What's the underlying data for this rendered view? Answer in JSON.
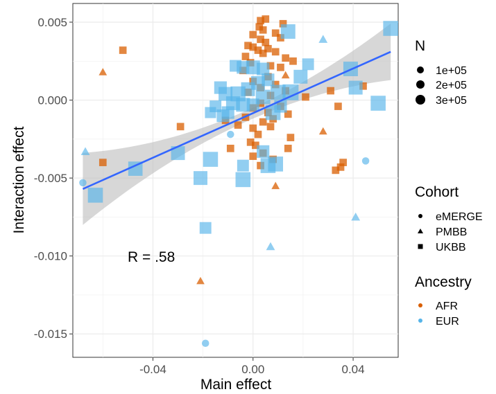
{
  "chart_data": {
    "type": "scatter",
    "xlabel": "Main effect",
    "ylabel": "Interaction effect",
    "xlim": [
      -0.072,
      0.058
    ],
    "ylim": [
      -0.0165,
      0.0062
    ],
    "x_ticks": [
      -0.04,
      0.0,
      0.04
    ],
    "x_tick_labels": [
      "-0.04",
      "0.00",
      "0.04"
    ],
    "y_ticks": [
      0.005,
      0.0,
      -0.005,
      -0.01,
      -0.015
    ],
    "y_tick_labels": [
      "0.005",
      "0.000",
      "-0.005",
      "-0.010",
      "-0.015"
    ],
    "grid": true,
    "annotation": "R = .58",
    "colors": {
      "AFR": "#d95f02",
      "EUR": "#56b4e9",
      "fit_line": "#3366ff",
      "ribbon": "#bdbdbd"
    },
    "fit_line": {
      "x": [
        -0.068,
        0.055
      ],
      "y": [
        -0.0057,
        0.0031
      ]
    },
    "legends": {
      "size": {
        "title": "N",
        "labels": [
          "1e+05",
          "2e+05",
          "3e+05"
        ],
        "values": [
          100000,
          200000,
          300000
        ]
      },
      "shape": {
        "title": "Cohort",
        "labels": [
          "eMERGE",
          "PMBB",
          "UKBB"
        ]
      },
      "color": {
        "title": "Ancestry",
        "labels": [
          "AFR",
          "EUR"
        ]
      }
    },
    "legend_position": "right",
    "points": [
      {
        "x": 0.005,
        "y": 0.0052,
        "cohort": "UKBB",
        "ancestry": "AFR",
        "n": 20000
      },
      {
        "x": 0.003,
        "y": 0.0051,
        "cohort": "UKBB",
        "ancestry": "AFR",
        "n": 20000
      },
      {
        "x": 0.012,
        "y": 0.0049,
        "cohort": "UKBB",
        "ancestry": "AFR",
        "n": 20000
      },
      {
        "x": 0.0025,
        "y": 0.0047,
        "cohort": "UKBB",
        "ancestry": "AFR",
        "n": 20000
      },
      {
        "x": 0.004,
        "y": 0.0045,
        "cohort": "UKBB",
        "ancestry": "AFR",
        "n": 20000
      },
      {
        "x": 0.009,
        "y": 0.0043,
        "cohort": "UKBB",
        "ancestry": "AFR",
        "n": 20000
      },
      {
        "x": 0.011,
        "y": 0.004,
        "cohort": "UKBB",
        "ancestry": "AFR",
        "n": 20000
      },
      {
        "x": 0.003,
        "y": 0.0039,
        "cohort": "UKBB",
        "ancestry": "AFR",
        "n": 20000
      },
      {
        "x": 0.005,
        "y": 0.0037,
        "cohort": "UKBB",
        "ancestry": "AFR",
        "n": 20000
      },
      {
        "x": -0.002,
        "y": 0.0035,
        "cohort": "UKBB",
        "ancestry": "AFR",
        "n": 20000
      },
      {
        "x": 0.0,
        "y": 0.0034,
        "cohort": "UKBB",
        "ancestry": "AFR",
        "n": 20000
      },
      {
        "x": 0.002,
        "y": 0.0032,
        "cohort": "UKBB",
        "ancestry": "AFR",
        "n": 20000
      },
      {
        "x": 0.006,
        "y": 0.0033,
        "cohort": "UKBB",
        "ancestry": "AFR",
        "n": 20000
      },
      {
        "x": 0.009,
        "y": 0.0031,
        "cohort": "UKBB",
        "ancestry": "AFR",
        "n": 20000
      },
      {
        "x": 0.004,
        "y": 0.003,
        "cohort": "UKBB",
        "ancestry": "AFR",
        "n": 20000
      },
      {
        "x": -0.003,
        "y": 0.0028,
        "cohort": "UKBB",
        "ancestry": "AFR",
        "n": 20000
      },
      {
        "x": 0.013,
        "y": 0.0027,
        "cohort": "UKBB",
        "ancestry": "AFR",
        "n": 20000
      },
      {
        "x": -0.001,
        "y": 0.0024,
        "cohort": "UKBB",
        "ancestry": "AFR",
        "n": 20000
      },
      {
        "x": 0.016,
        "y": 0.0025,
        "cohort": "UKBB",
        "ancestry": "AFR",
        "n": 20000
      },
      {
        "x": 0.007,
        "y": 0.0022,
        "cohort": "UKBB",
        "ancestry": "AFR",
        "n": 20000
      },
      {
        "x": 0.011,
        "y": 0.0021,
        "cohort": "UKBB",
        "ancestry": "AFR",
        "n": 20000
      },
      {
        "x": -0.004,
        "y": 0.0019,
        "cohort": "UKBB",
        "ancestry": "AFR",
        "n": 20000
      },
      {
        "x": 0.006,
        "y": 0.0015,
        "cohort": "UKBB",
        "ancestry": "AFR",
        "n": 20000
      },
      {
        "x": 0.0,
        "y": 0.0012,
        "cohort": "UKBB",
        "ancestry": "AFR",
        "n": 20000
      },
      {
        "x": 0.009,
        "y": 0.001,
        "cohort": "UKBB",
        "ancestry": "AFR",
        "n": 20000
      },
      {
        "x": 0.003,
        "y": 0.0008,
        "cohort": "UKBB",
        "ancestry": "AFR",
        "n": 20000
      },
      {
        "x": 0.013,
        "y": 0.0006,
        "cohort": "UKBB",
        "ancestry": "AFR",
        "n": 20000
      },
      {
        "x": -0.002,
        "y": 0.0005,
        "cohort": "UKBB",
        "ancestry": "AFR",
        "n": 20000
      },
      {
        "x": 0.007,
        "y": 0.0003,
        "cohort": "UKBB",
        "ancestry": "AFR",
        "n": 20000
      },
      {
        "x": 0.021,
        "y": 0.0002,
        "cohort": "UKBB",
        "ancestry": "AFR",
        "n": 20000
      },
      {
        "x": 0.003,
        "y": -0.0002,
        "cohort": "UKBB",
        "ancestry": "AFR",
        "n": 20000
      },
      {
        "x": 0.011,
        "y": -0.0004,
        "cohort": "UKBB",
        "ancestry": "AFR",
        "n": 20000
      },
      {
        "x": 0.0,
        "y": -0.0005,
        "cohort": "UKBB",
        "ancestry": "AFR",
        "n": 20000
      },
      {
        "x": 0.006,
        "y": -0.0008,
        "cohort": "UKBB",
        "ancestry": "AFR",
        "n": 20000
      },
      {
        "x": 0.014,
        "y": -0.0009,
        "cohort": "UKBB",
        "ancestry": "AFR",
        "n": 20000
      },
      {
        "x": -0.003,
        "y": -0.0011,
        "cohort": "UKBB",
        "ancestry": "AFR",
        "n": 20000
      },
      {
        "x": 0.008,
        "y": -0.0012,
        "cohort": "UKBB",
        "ancestry": "AFR",
        "n": 20000
      },
      {
        "x": 0.004,
        "y": -0.0014,
        "cohort": "UKBB",
        "ancestry": "AFR",
        "n": 20000
      },
      {
        "x": -0.006,
        "y": -0.0016,
        "cohort": "UKBB",
        "ancestry": "AFR",
        "n": 20000
      },
      {
        "x": -0.029,
        "y": -0.0017,
        "cohort": "UKBB",
        "ancestry": "AFR",
        "n": 20000
      },
      {
        "x": 0.0,
        "y": -0.0018,
        "cohort": "UKBB",
        "ancestry": "AFR",
        "n": 20000
      },
      {
        "x": 0.007,
        "y": -0.0017,
        "cohort": "UKBB",
        "ancestry": "AFR",
        "n": 20000
      },
      {
        "x": 0.002,
        "y": -0.0022,
        "cohort": "UKBB",
        "ancestry": "AFR",
        "n": 20000
      },
      {
        "x": 0.015,
        "y": -0.0024,
        "cohort": "UKBB",
        "ancestry": "AFR",
        "n": 20000
      },
      {
        "x": -0.001,
        "y": -0.0027,
        "cohort": "UKBB",
        "ancestry": "AFR",
        "n": 20000
      },
      {
        "x": 0.001,
        "y": -0.0029,
        "cohort": "UKBB",
        "ancestry": "AFR",
        "n": 20000
      },
      {
        "x": 0.014,
        "y": -0.0031,
        "cohort": "UKBB",
        "ancestry": "AFR",
        "n": 20000
      },
      {
        "x": -0.009,
        "y": -0.0031,
        "cohort": "UKBB",
        "ancestry": "AFR",
        "n": 20000
      },
      {
        "x": 0.004,
        "y": -0.0034,
        "cohort": "UKBB",
        "ancestry": "AFR",
        "n": 20000
      },
      {
        "x": 0.0,
        "y": -0.0036,
        "cohort": "UKBB",
        "ancestry": "AFR",
        "n": 20000
      },
      {
        "x": 0.008,
        "y": -0.0038,
        "cohort": "UKBB",
        "ancestry": "AFR",
        "n": 20000
      },
      {
        "x": -0.06,
        "y": -0.004,
        "cohort": "UKBB",
        "ancestry": "AFR",
        "n": 20000
      },
      {
        "x": 0.036,
        "y": -0.004,
        "cohort": "UKBB",
        "ancestry": "AFR",
        "n": 20000
      },
      {
        "x": 0.003,
        "y": -0.0042,
        "cohort": "UKBB",
        "ancestry": "AFR",
        "n": 20000
      },
      {
        "x": 0.035,
        "y": -0.0043,
        "cohort": "UKBB",
        "ancestry": "AFR",
        "n": 20000
      },
      {
        "x": 0.033,
        "y": -0.0045,
        "cohort": "UKBB",
        "ancestry": "AFR",
        "n": 20000
      },
      {
        "x": 0.031,
        "y": 0.0006,
        "cohort": "UKBB",
        "ancestry": "AFR",
        "n": 20000
      },
      {
        "x": 0.044,
        "y": 0.0009,
        "cohort": "UKBB",
        "ancestry": "AFR",
        "n": 20000
      },
      {
        "x": 0.034,
        "y": -0.0004,
        "cohort": "UKBB",
        "ancestry": "AFR",
        "n": 20000
      },
      {
        "x": -0.052,
        "y": 0.0032,
        "cohort": "UKBB",
        "ancestry": "AFR",
        "n": 20000
      },
      {
        "x": -0.011,
        "y": -0.0013,
        "cohort": "UKBB",
        "ancestry": "AFR",
        "n": 20000
      },
      {
        "x": 0.0,
        "y": 0.0042,
        "cohort": "UKBB",
        "ancestry": "AFR",
        "n": 20000
      },
      {
        "x": -0.06,
        "y": 0.0018,
        "cohort": "PMBB",
        "ancestry": "AFR",
        "n": 20000
      },
      {
        "x": 0.028,
        "y": -0.002,
        "cohort": "PMBB",
        "ancestry": "AFR",
        "n": 20000
      },
      {
        "x": 0.009,
        "y": -0.0055,
        "cohort": "PMBB",
        "ancestry": "AFR",
        "n": 20000
      },
      {
        "x": -0.021,
        "y": -0.0116,
        "cohort": "PMBB",
        "ancestry": "AFR",
        "n": 20000
      },
      {
        "x": 0.013,
        "y": 0.0016,
        "cohort": "PMBB",
        "ancestry": "AFR",
        "n": 20000
      },
      {
        "x": 0.028,
        "y": 0.0039,
        "cohort": "PMBB",
        "ancestry": "EUR",
        "n": 30000
      },
      {
        "x": -0.067,
        "y": -0.0033,
        "cohort": "PMBB",
        "ancestry": "EUR",
        "n": 30000
      },
      {
        "x": 0.041,
        "y": -0.0075,
        "cohort": "PMBB",
        "ancestry": "EUR",
        "n": 30000
      },
      {
        "x": 0.007,
        "y": -0.0094,
        "cohort": "PMBB",
        "ancestry": "EUR",
        "n": 30000
      },
      {
        "x": -0.068,
        "y": -0.0053,
        "cohort": "eMERGE",
        "ancestry": "EUR",
        "n": 30000
      },
      {
        "x": -0.009,
        "y": -0.0022,
        "cohort": "eMERGE",
        "ancestry": "EUR",
        "n": 30000
      },
      {
        "x": 0.045,
        "y": -0.0039,
        "cohort": "eMERGE",
        "ancestry": "EUR",
        "n": 30000
      },
      {
        "x": -0.019,
        "y": -0.0156,
        "cohort": "eMERGE",
        "ancestry": "EUR",
        "n": 30000
      },
      {
        "x": 0.055,
        "y": 0.0046,
        "cohort": "UKBB",
        "ancestry": "EUR",
        "n": 250000
      },
      {
        "x": 0.014,
        "y": 0.0044,
        "cohort": "UKBB",
        "ancestry": "EUR",
        "n": 230000
      },
      {
        "x": 0.039,
        "y": 0.002,
        "cohort": "UKBB",
        "ancestry": "EUR",
        "n": 230000
      },
      {
        "x": 0.022,
        "y": 0.0023,
        "cohort": "UKBB",
        "ancestry": "EUR",
        "n": 120000
      },
      {
        "x": 0.019,
        "y": 0.0015,
        "cohort": "UKBB",
        "ancestry": "EUR",
        "n": 200000
      },
      {
        "x": 0.041,
        "y": 0.0008,
        "cohort": "UKBB",
        "ancestry": "EUR",
        "n": 200000
      },
      {
        "x": 0.05,
        "y": -0.0002,
        "cohort": "UKBB",
        "ancestry": "EUR",
        "n": 250000
      },
      {
        "x": 0.015,
        "y": 0.0005,
        "cohort": "UKBB",
        "ancestry": "EUR",
        "n": 300000
      },
      {
        "x": 0.01,
        "y": 0.0005,
        "cohort": "UKBB",
        "ancestry": "EUR",
        "n": 250000
      },
      {
        "x": 0.004,
        "y": 0.0002,
        "cohort": "UKBB",
        "ancestry": "EUR",
        "n": 230000
      },
      {
        "x": 0.0,
        "y": 0.0021,
        "cohort": "UKBB",
        "ancestry": "EUR",
        "n": 200000
      },
      {
        "x": -0.004,
        "y": 0.0021,
        "cohort": "UKBB",
        "ancestry": "EUR",
        "n": 150000
      },
      {
        "x": -0.007,
        "y": 0.0022,
        "cohort": "UKBB",
        "ancestry": "EUR",
        "n": 120000
      },
      {
        "x": 0.004,
        "y": 0.002,
        "cohort": "UKBB",
        "ancestry": "EUR",
        "n": 150000
      },
      {
        "x": 0.006,
        "y": 0.0013,
        "cohort": "UKBB",
        "ancestry": "EUR",
        "n": 150000
      },
      {
        "x": 0.002,
        "y": 0.0011,
        "cohort": "UKBB",
        "ancestry": "EUR",
        "n": 200000
      },
      {
        "x": -0.002,
        "y": 0.0007,
        "cohort": "UKBB",
        "ancestry": "EUR",
        "n": 200000
      },
      {
        "x": -0.006,
        "y": 0.0004,
        "cohort": "UKBB",
        "ancestry": "EUR",
        "n": 250000
      },
      {
        "x": -0.011,
        "y": 0.0004,
        "cohort": "UKBB",
        "ancestry": "EUR",
        "n": 200000
      },
      {
        "x": -0.013,
        "y": 0.0008,
        "cohort": "UKBB",
        "ancestry": "EUR",
        "n": 150000
      },
      {
        "x": -0.008,
        "y": -0.0002,
        "cohort": "UKBB",
        "ancestry": "EUR",
        "n": 200000
      },
      {
        "x": -0.004,
        "y": -0.0003,
        "cohort": "UKBB",
        "ancestry": "EUR",
        "n": 200000
      },
      {
        "x": -0.015,
        "y": -0.0004,
        "cohort": "UKBB",
        "ancestry": "EUR",
        "n": 120000
      },
      {
        "x": -0.01,
        "y": -0.0008,
        "cohort": "UKBB",
        "ancestry": "EUR",
        "n": 150000
      },
      {
        "x": -0.017,
        "y": -0.0008,
        "cohort": "UKBB",
        "ancestry": "EUR",
        "n": 100000
      },
      {
        "x": 0.008,
        "y": -0.0008,
        "cohort": "UKBB",
        "ancestry": "EUR",
        "n": 250000
      },
      {
        "x": 0.011,
        "y": -0.0004,
        "cohort": "UKBB",
        "ancestry": "EUR",
        "n": 150000
      },
      {
        "x": 0.0,
        "y": -0.0003,
        "cohort": "UKBB",
        "ancestry": "EUR",
        "n": 150000
      },
      {
        "x": -0.012,
        "y": -0.001,
        "cohort": "UKBB",
        "ancestry": "EUR",
        "n": 150000
      },
      {
        "x": -0.047,
        "y": -0.0044,
        "cohort": "UKBB",
        "ancestry": "EUR",
        "n": 220000
      },
      {
        "x": -0.03,
        "y": -0.0034,
        "cohort": "UKBB",
        "ancestry": "EUR",
        "n": 200000
      },
      {
        "x": -0.017,
        "y": -0.0038,
        "cohort": "UKBB",
        "ancestry": "EUR",
        "n": 250000
      },
      {
        "x": -0.063,
        "y": -0.0061,
        "cohort": "UKBB",
        "ancestry": "EUR",
        "n": 250000
      },
      {
        "x": -0.021,
        "y": -0.005,
        "cohort": "UKBB",
        "ancestry": "EUR",
        "n": 200000
      },
      {
        "x": -0.004,
        "y": -0.0051,
        "cohort": "UKBB",
        "ancestry": "EUR",
        "n": 250000
      },
      {
        "x": -0.004,
        "y": -0.0042,
        "cohort": "UKBB",
        "ancestry": "EUR",
        "n": 120000
      },
      {
        "x": 0.004,
        "y": -0.0033,
        "cohort": "UKBB",
        "ancestry": "EUR",
        "n": 150000
      },
      {
        "x": 0.006,
        "y": -0.0042,
        "cohort": "UKBB",
        "ancestry": "EUR",
        "n": 250000
      },
      {
        "x": 0.009,
        "y": -0.0041,
        "cohort": "UKBB",
        "ancestry": "EUR",
        "n": 250000
      },
      {
        "x": -0.019,
        "y": -0.0082,
        "cohort": "UKBB",
        "ancestry": "EUR",
        "n": 120000
      }
    ]
  }
}
